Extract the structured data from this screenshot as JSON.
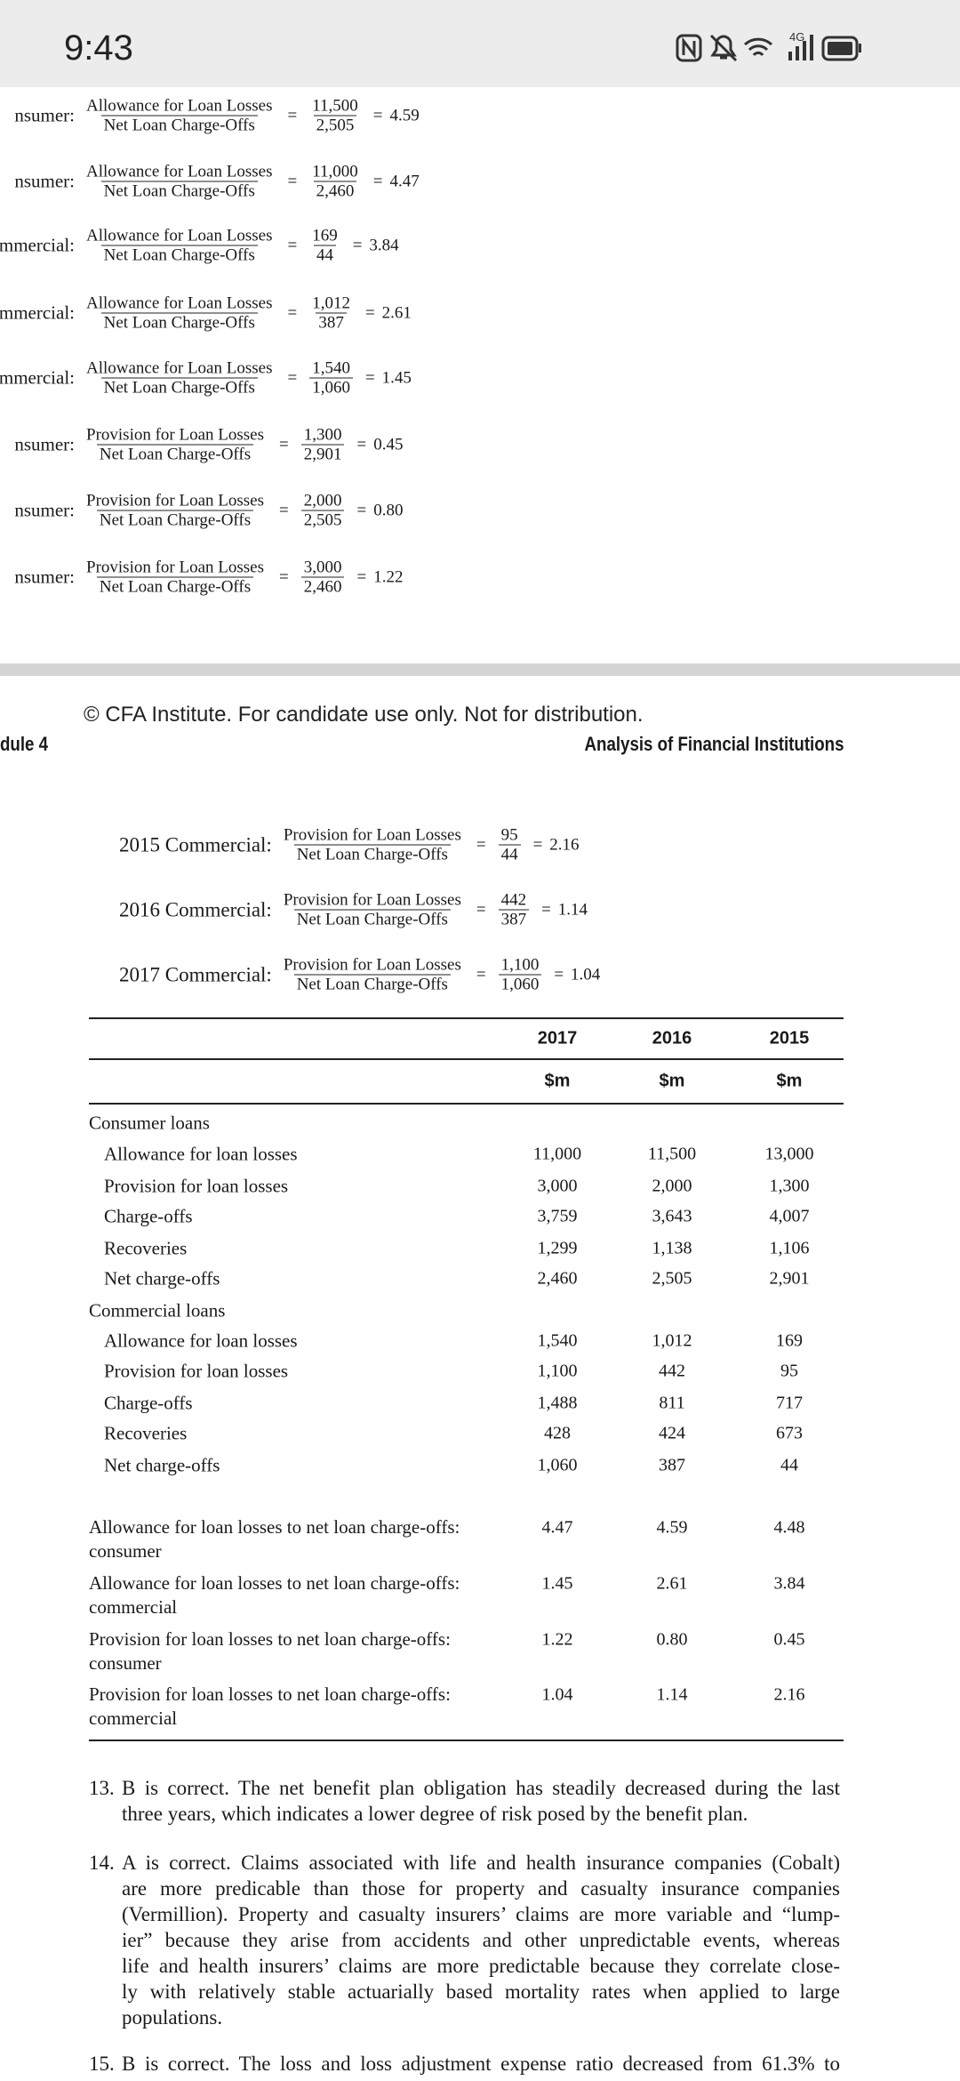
{
  "status_bar": {
    "time": "9:43",
    "network": "4G"
  },
  "formulas_top": [
    {
      "label": "nsumer:",
      "num_label": "Allowance for Loan Losses",
      "den_label": "Net Loan Charge-Offs",
      "num": "11,500",
      "den": "2,505",
      "result": "4.59"
    },
    {
      "label": "nsumer:",
      "num_label": "Allowance for Loan Losses",
      "den_label": "Net Loan Charge-Offs",
      "num": "11,000",
      "den": "2,460",
      "result": "4.47"
    },
    {
      "label": "ommercial:",
      "num_label": "Allowance for Loan Losses",
      "den_label": "Net Loan Charge-Offs",
      "num": "169",
      "den": "44",
      "result": "3.84"
    },
    {
      "label": "mmercial:",
      "num_label": "Allowance for Loan Losses",
      "den_label": "Net Loan Charge-Offs",
      "num": "1,012",
      "den": "387",
      "result": "2.61"
    },
    {
      "label": "mmercial:",
      "num_label": "Allowance for Loan Losses",
      "den_label": "Net Loan Charge-Offs",
      "num": "1,540",
      "den": "1,060",
      "result": "1.45"
    },
    {
      "label": "nsumer:",
      "num_label": "Provision for Loan Losses",
      "den_label": "Net Loan Charge-Offs",
      "num": "1,300",
      "den": "2,901",
      "result": "0.45"
    },
    {
      "label": "nsumer:",
      "num_label": "Provision for Loan Losses",
      "den_label": "Net Loan Charge-Offs",
      "num": "2,000",
      "den": "2,505",
      "result": "0.80"
    },
    {
      "label": "nsumer:",
      "num_label": "Provision for Loan Losses",
      "den_label": "Net Loan Charge-Offs",
      "num": "3,000",
      "den": "2,460",
      "result": "1.22"
    }
  ],
  "page_footer": "© CFA Institute. For candidate use only. Not for distribution.",
  "header": {
    "left": "dule 4",
    "right": "Analysis of Financial Institutions"
  },
  "formulas": [
    {
      "label": "2015 Commercial:",
      "num_label": "Provision for Loan Losses",
      "den_label": "Net Loan Charge-Offs",
      "num": "95",
      "den": "44",
      "result": "2.16"
    },
    {
      "label": "2016 Commercial:",
      "num_label": "Provision for Loan Losses",
      "den_label": "Net Loan Charge-Offs",
      "num": "442",
      "den": "387",
      "result": "1.14"
    },
    {
      "label": "2017 Commercial:",
      "num_label": "Provision for Loan Losses",
      "den_label": "Net Loan Charge-Offs",
      "num": "1,100",
      "den": "1,060",
      "result": "1.04"
    }
  ],
  "table": {
    "columns": [
      "2017",
      "2016",
      "2015"
    ],
    "units": [
      "$m",
      "$m",
      "$m"
    ],
    "rows": [
      {
        "label": "Consumer loans",
        "indent": false,
        "values": []
      },
      {
        "label": "Allowance for loan losses",
        "indent": true,
        "values": [
          "11,000",
          "11,500",
          "13,000"
        ]
      },
      {
        "label": "Provision for loan losses",
        "indent": true,
        "values": [
          "3,000",
          "2,000",
          "1,300"
        ]
      },
      {
        "label": "Charge-offs",
        "indent": true,
        "values": [
          "3,759",
          "3,643",
          "4,007"
        ]
      },
      {
        "label": "Recoveries",
        "indent": true,
        "values": [
          "1,299",
          "1,138",
          "1,106"
        ]
      },
      {
        "label": "Net charge-offs",
        "indent": true,
        "values": [
          "2,460",
          "2,505",
          "2,901"
        ]
      },
      {
        "label": "Commercial loans",
        "indent": false,
        "values": []
      },
      {
        "label": "Allowance for loan losses",
        "indent": true,
        "values": [
          "1,540",
          "1,012",
          "169"
        ]
      },
      {
        "label": "Provision for loan losses",
        "indent": true,
        "values": [
          "1,100",
          "442",
          "95"
        ]
      },
      {
        "label": "Charge-offs",
        "indent": true,
        "values": [
          "1,488",
          "811",
          "717"
        ]
      },
      {
        "label": "Recoveries",
        "indent": true,
        "values": [
          "428",
          "424",
          "673"
        ]
      },
      {
        "label": "Net charge-offs",
        "indent": true,
        "values": [
          "1,060",
          "387",
          "44"
        ]
      }
    ],
    "ratio_rows": [
      {
        "label": "Allowance for loan losses to net loan charge-offs: consumer",
        "values": [
          "4.47",
          "4.59",
          "4.48"
        ]
      },
      {
        "label": "Allowance for loan losses to net loan charge-offs: commercial",
        "values": [
          "1.45",
          "2.61",
          "3.84"
        ]
      },
      {
        "label": "Provision for loan losses to net loan charge-offs: consumer",
        "values": [
          "1.22",
          "0.80",
          "0.45"
        ]
      },
      {
        "label": "Provision for loan losses to net loan charge-offs: commercial",
        "values": [
          "1.04",
          "1.14",
          "2.16"
        ]
      }
    ]
  },
  "answers": [
    {
      "number": "13.",
      "lines": [
        "B is correct. The net benefit plan obligation has steadily decreased during the last",
        "three years, which indicates a lower degree of risk posed by the benefit plan."
      ]
    },
    {
      "number": "14.",
      "lines": [
        "A is correct. Claims associated with life and health insurance companies (Cobalt)",
        "are more predicable than those for property and casualty insurance companies",
        "(Vermillion). Property and casualty insurers’ claims are more variable and “lump-",
        "ier” because they arise from accidents and other unpredictable events, whereas",
        "life and health insurers’ claims are more predictable because they correlate close-",
        "ly with relatively stable actuarially based mortality rates when applied to large",
        "populations."
      ]
    },
    {
      "number": "15.",
      "lines": [
        "B is correct. The loss and loss adjustment expense ratio decreased from 61.3% to"
      ]
    }
  ]
}
